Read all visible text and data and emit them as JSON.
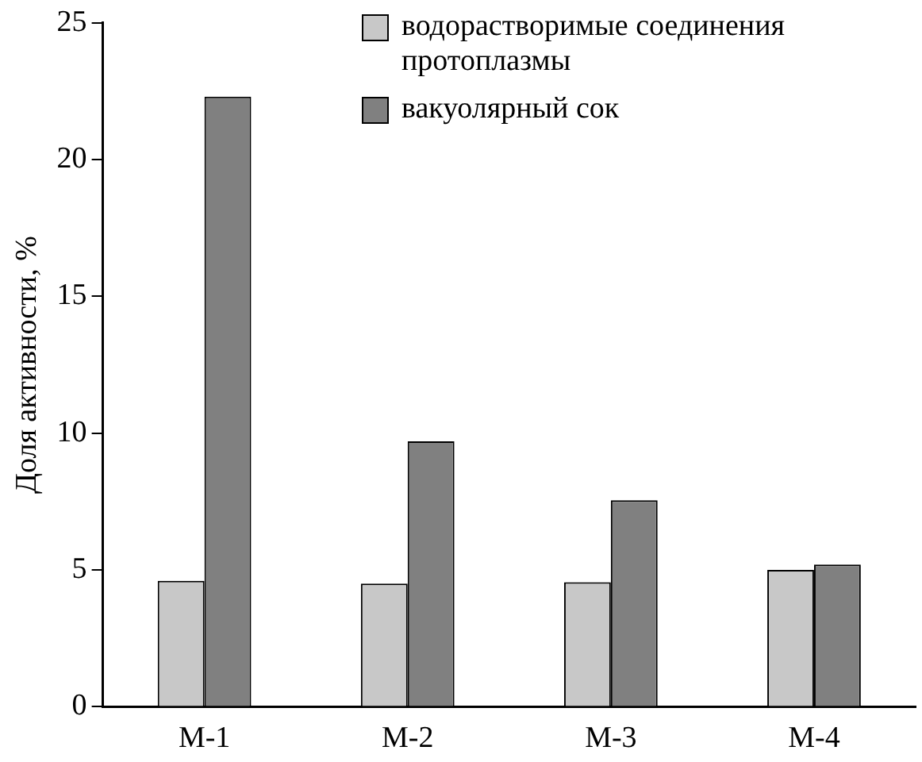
{
  "chart_data": {
    "type": "bar",
    "ylabel": "Доля активности, %",
    "categories": [
      "М-1",
      "М-2",
      "М-3",
      "М-4"
    ],
    "series": [
      {
        "name": "водорастворимые соединения протоплазмы",
        "color": "#c8c8c8",
        "values": [
          4.6,
          4.5,
          4.55,
          5.0
        ]
      },
      {
        "name": "вакуолярный сок",
        "color": "#808080",
        "values": [
          22.3,
          9.7,
          7.55,
          5.2
        ]
      }
    ],
    "ylim": [
      0,
      25
    ],
    "yticks": [
      0,
      5,
      10,
      15,
      20,
      25
    ],
    "grid": false,
    "legend": "top right"
  }
}
